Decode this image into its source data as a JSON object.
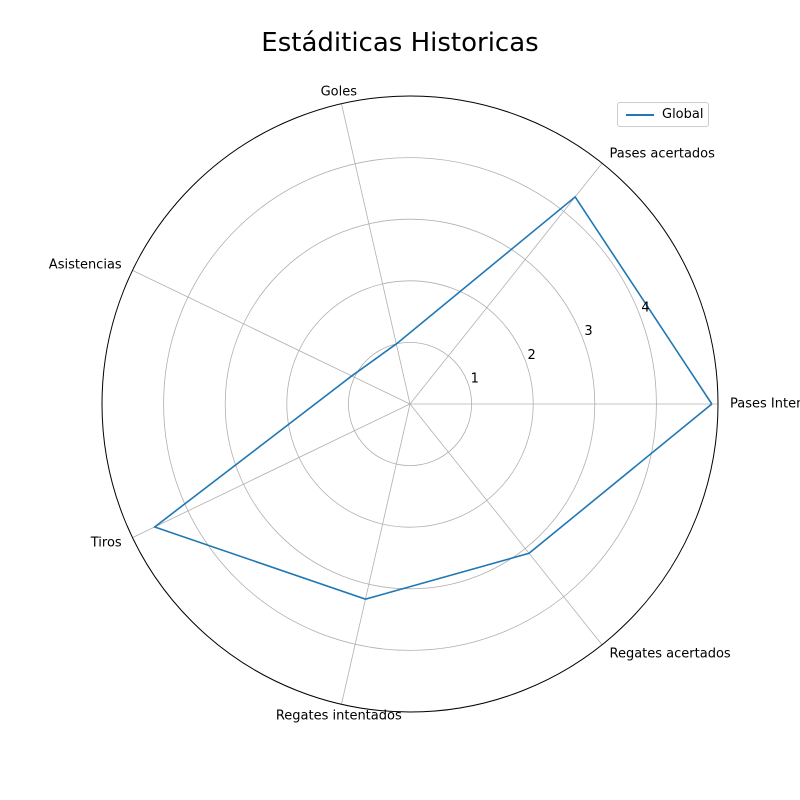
{
  "chart_data": {
    "type": "radar",
    "title": "Estáditicas Historicas",
    "categories": [
      "Pases Intentados",
      "Pases acertados",
      "Goles",
      "Asistencias",
      "Tiros",
      "Regates intentados",
      "Regates acertados"
    ],
    "radial_ticks": [
      1,
      2,
      3,
      4
    ],
    "rlim": [
      0,
      5
    ],
    "series": [
      {
        "name": "Global",
        "color": "#1f77b4",
        "values": [
          4.9,
          4.3,
          1.0,
          1.05,
          4.6,
          3.25,
          3.1
        ]
      }
    ],
    "legend": {
      "position": "top-right"
    },
    "grid": true
  }
}
